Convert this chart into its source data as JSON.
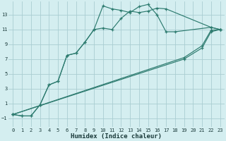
{
  "xlabel": "Humidex (Indice chaleur)",
  "background_color": "#d4eef0",
  "grid_color": "#aacdd2",
  "line_color": "#2d7b6f",
  "xlim": [
    -0.5,
    23.5
  ],
  "ylim": [
    -2.2,
    14.8
  ],
  "xticks": [
    0,
    1,
    2,
    3,
    4,
    5,
    6,
    7,
    8,
    9,
    10,
    11,
    12,
    13,
    14,
    15,
    16,
    17,
    18,
    19,
    20,
    21,
    22,
    23
  ],
  "yticks": [
    -1,
    1,
    3,
    5,
    7,
    9,
    11,
    13
  ],
  "curve1_x": [
    0,
    1,
    2,
    3,
    4,
    5,
    6,
    7,
    8,
    9,
    10,
    11,
    12,
    13,
    14,
    15,
    16,
    17,
    22,
    23
  ],
  "curve1_y": [
    -0.5,
    -0.7,
    -0.7,
    0.8,
    3.5,
    4.0,
    7.5,
    7.8,
    9.3,
    11.0,
    11.2,
    11.0,
    12.5,
    13.5,
    13.3,
    13.5,
    13.9,
    13.8,
    11.3,
    11.0
  ],
  "curve2_x": [
    0,
    1,
    2,
    3,
    4,
    5,
    6,
    7,
    8,
    9,
    10,
    11,
    12,
    13,
    14,
    15,
    16,
    17,
    18,
    22,
    23
  ],
  "curve2_y": [
    -0.5,
    -0.7,
    -0.7,
    0.8,
    3.5,
    4.0,
    7.5,
    7.8,
    9.3,
    11.0,
    14.2,
    13.8,
    13.6,
    13.3,
    14.1,
    14.4,
    13.0,
    10.7,
    10.7,
    11.3,
    11.0
  ],
  "line3_x": [
    0,
    19,
    21,
    22,
    23
  ],
  "line3_y": [
    -0.5,
    7.0,
    8.5,
    10.7,
    11.0
  ],
  "line4_x": [
    0,
    19,
    21,
    22,
    23
  ],
  "line4_y": [
    -0.5,
    7.2,
    8.8,
    10.9,
    11.0
  ]
}
